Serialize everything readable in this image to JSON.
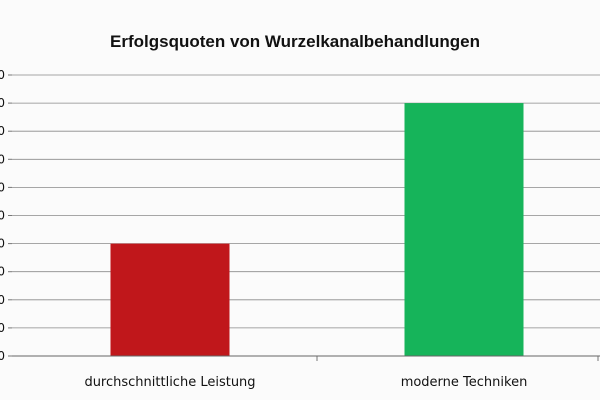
{
  "chart_data": {
    "type": "bar",
    "title": "Erfolgsquoten von Wurzelkanalbehandlungen",
    "xlabel": "",
    "ylabel": "",
    "categories": [
      "durchschnittliche Leistung",
      "moderne Techniken"
    ],
    "values": [
      40,
      90
    ],
    "ylim": [
      0,
      100
    ],
    "grid": true,
    "legend": "none",
    "colors": [
      "#c0171b",
      "#16b45a"
    ]
  }
}
